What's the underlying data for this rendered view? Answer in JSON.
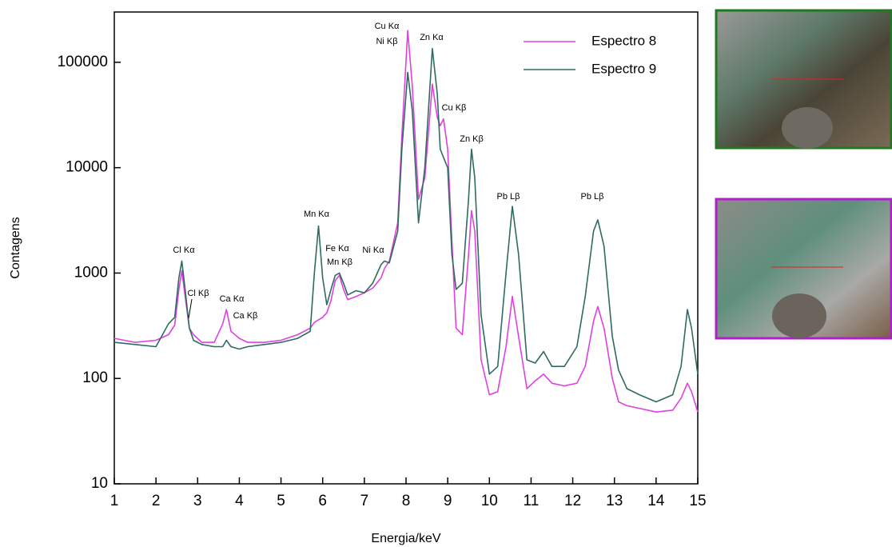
{
  "chart_data": {
    "type": "line",
    "yscale": "log",
    "y_label": "Contagens",
    "x_label": "Energia/keV",
    "xlim": [
      1,
      15
    ],
    "ylim": [
      10,
      300000
    ],
    "xticks": [
      1,
      2,
      3,
      4,
      5,
      6,
      7,
      8,
      9,
      10,
      11,
      12,
      13,
      14,
      15
    ],
    "yticks": [
      10,
      100,
      1000,
      10000,
      100000
    ],
    "legend": "upper right",
    "x": [
      1.0,
      1.5,
      2.0,
      2.3,
      2.45,
      2.55,
      2.62,
      2.7,
      2.8,
      2.9,
      3.1,
      3.4,
      3.6,
      3.69,
      3.8,
      4.0,
      4.2,
      4.6,
      5.0,
      5.4,
      5.7,
      5.8,
      5.9,
      6.0,
      6.1,
      6.2,
      6.3,
      6.4,
      6.5,
      6.6,
      6.8,
      7.0,
      7.2,
      7.4,
      7.48,
      7.6,
      7.8,
      7.9,
      8.04,
      8.15,
      8.3,
      8.45,
      8.63,
      8.75,
      8.82,
      8.9,
      9.0,
      9.1,
      9.2,
      9.35,
      9.5,
      9.57,
      9.65,
      9.8,
      10.0,
      10.2,
      10.4,
      10.55,
      10.7,
      10.9,
      11.1,
      11.3,
      11.5,
      11.8,
      12.1,
      12.3,
      12.5,
      12.6,
      12.75,
      12.95,
      13.1,
      13.3,
      13.6,
      14.0,
      14.4,
      14.6,
      14.75,
      14.85,
      15.0
    ],
    "series": [
      {
        "name": "Espectro 8",
        "color": "#e040e0",
        "values": [
          240,
          220,
          230,
          260,
          320,
          700,
          1050,
          600,
          300,
          260,
          220,
          220,
          330,
          450,
          280,
          240,
          220,
          220,
          230,
          260,
          300,
          340,
          360,
          380,
          420,
          550,
          850,
          950,
          700,
          560,
          600,
          650,
          720,
          900,
          1100,
          1300,
          3000,
          20000,
          200000,
          60000,
          5000,
          8000,
          62000,
          30000,
          25000,
          29000,
          15000,
          2000,
          300,
          260,
          1500,
          3900,
          2500,
          150,
          70,
          75,
          200,
          600,
          250,
          80,
          95,
          110,
          90,
          85,
          90,
          130,
          350,
          480,
          300,
          100,
          60,
          55,
          52,
          48,
          50,
          65,
          90,
          75,
          48
        ]
      },
      {
        "name": "Espectro 9",
        "color": "#2e6b62",
        "values": [
          220,
          210,
          200,
          330,
          380,
          900,
          1300,
          700,
          300,
          230,
          210,
          200,
          200,
          230,
          200,
          190,
          200,
          210,
          220,
          240,
          280,
          1000,
          2800,
          900,
          500,
          700,
          950,
          1000,
          800,
          620,
          680,
          650,
          800,
          1200,
          1300,
          1250,
          2500,
          15000,
          80000,
          35000,
          3000,
          10000,
          135000,
          50000,
          15000,
          12500,
          10000,
          1500,
          700,
          800,
          5000,
          15000,
          8000,
          400,
          110,
          130,
          1000,
          4300,
          1500,
          150,
          140,
          180,
          130,
          130,
          200,
          600,
          2500,
          3200,
          1800,
          250,
          120,
          80,
          70,
          60,
          70,
          130,
          450,
          300,
          110
        ]
      }
    ],
    "annotations": [
      "Cl Kα",
      "Cl Kβ",
      "Ca Kα",
      "Ca Kβ",
      "Mn Kα",
      "Fe Kα",
      "Mn Kβ",
      "Ni Kα",
      "Cu Kα",
      "Ni Kβ",
      "Zn Kα",
      "Cu Kβ",
      "Zn Kβ",
      "Pb Lβ",
      "Pb Lβ"
    ]
  }
}
